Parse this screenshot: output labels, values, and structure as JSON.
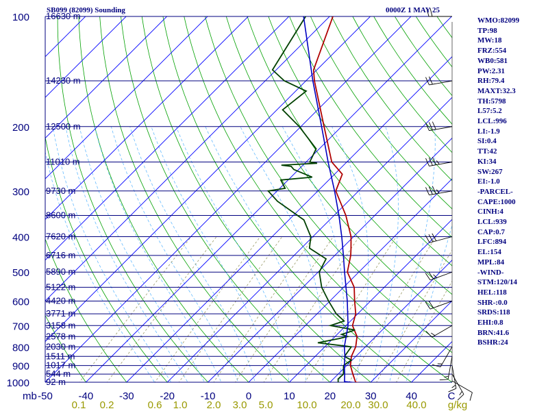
{
  "header": {
    "station": "SB099 (82099) Sounding",
    "time": "0000Z  1 MAY 25"
  },
  "stats": [
    "WMO:82099",
    "TP:98",
    "MW:18",
    "FRZ:554",
    "WB0:581",
    "PW:2.31",
    "RH:79.4",
    "MAXT:32.3",
    "TH:5798",
    "L57:5.2",
    "LCL:996",
    "LI:-1.9",
    "SI:0.4",
    "TT:42",
    "KI:34",
    "SW:267",
    "EI:-1.0",
    "-PARCEL-",
    "CAPE:1000",
    "CINH:4",
    "LCL:939",
    "CAP:0.7",
    "LFC:894",
    "EL:154",
    "MPL:84",
    "-WIND-",
    "STM:120/14",
    "HEL:118",
    "SHR-:0.0",
    "SRDS:118",
    "EHI:0.8",
    "BRN:41.6",
    "BSHR:24"
  ],
  "colors": {
    "isobar": "#00007f",
    "isotherm": "#0000ff",
    "dry_adiabat": "#00a000",
    "moist_adiabat": "#66bbff",
    "mixing_ratio": "#999966",
    "temperature": "#b00000",
    "dewpoint": "#004000",
    "parcel": "#0000c0",
    "text": "#00007f",
    "mr_labels": "#999900"
  },
  "chart_data": {
    "type": "line",
    "title": "SB099 (82099) Sounding",
    "xlabel": "°C",
    "ylabel": "mb",
    "xlim": [
      -50,
      50
    ],
    "ylim": [
      1000,
      100
    ],
    "y_scale": "log",
    "pressure_ticks": [
      100,
      200,
      300,
      400,
      500,
      600,
      700,
      800,
      900,
      1000
    ],
    "pressure_axis_label": "mb",
    "temp_ticks": [
      -50,
      -40,
      -30,
      -20,
      -10,
      0,
      10,
      20,
      30,
      40
    ],
    "temp_tick_labels": [
      "-50",
      "-40",
      "-30",
      "-20",
      "-10",
      "0",
      "10",
      "20",
      "30",
      "40"
    ],
    "corner_label": "C",
    "mixing_ratio_labels": [
      "0.1",
      "0.2",
      "0.6",
      "1.0",
      "2.0",
      "3.0",
      "5.0",
      "10.0",
      "20.0",
      "30.0",
      "40.0"
    ],
    "mixing_ratio_unit": "g/kg",
    "heights": [
      {
        "p": 100,
        "label": "16630 m"
      },
      {
        "p": 150,
        "label": "14230 m"
      },
      {
        "p": 200,
        "label": "12500 m"
      },
      {
        "p": 250,
        "label": "11010 m"
      },
      {
        "p": 300,
        "label": "9730 m"
      },
      {
        "p": 350,
        "label": "8600 m"
      },
      {
        "p": 400,
        "label": "7620 m"
      },
      {
        "p": 450,
        "label": "6716 m"
      },
      {
        "p": 500,
        "label": "5890 m"
      },
      {
        "p": 550,
        "label": "5122 m"
      },
      {
        "p": 600,
        "label": "4420 m"
      },
      {
        "p": 650,
        "label": "3771 m"
      },
      {
        "p": 700,
        "label": "3158 m"
      },
      {
        "p": 750,
        "label": "2578 m"
      },
      {
        "p": 800,
        "label": "2030 m"
      },
      {
        "p": 850,
        "label": "1511 m"
      },
      {
        "p": 900,
        "label": "1017 m"
      },
      {
        "p": 950,
        "label": "544 m"
      },
      {
        "p": 1000,
        "label": "92 m"
      }
    ],
    "series": [
      {
        "key": "temperature",
        "points": [
          [
            1008,
            28.6
          ],
          [
            1000,
            26.3
          ],
          [
            950,
            23.6
          ],
          [
            900,
            20.9
          ],
          [
            850,
            18.9
          ],
          [
            800,
            17.6
          ],
          [
            750,
            15.4
          ],
          [
            700,
            11.6
          ],
          [
            650,
            9.5
          ],
          [
            600,
            6.1
          ],
          [
            550,
            2.6
          ],
          [
            500,
            -2.8
          ],
          [
            450,
            -6.1
          ],
          [
            430,
            -7.8
          ],
          [
            400,
            -10.6
          ],
          [
            350,
            -17.1
          ],
          [
            300,
            -25.6
          ],
          [
            270,
            -28.1
          ],
          [
            250,
            -33.7
          ],
          [
            200,
            -44.3
          ],
          [
            150,
            -57.9
          ],
          [
            140,
            -60.8
          ],
          [
            100,
            -69.2
          ]
        ]
      },
      {
        "key": "dewpoint",
        "points": [
          [
            1008,
            22.4
          ],
          [
            1000,
            22.0
          ],
          [
            980,
            21.2
          ],
          [
            950,
            21.3
          ],
          [
            900,
            19.2
          ],
          [
            870,
            19.8
          ],
          [
            850,
            17.2
          ],
          [
            800,
            16.5
          ],
          [
            780,
            7.3
          ],
          [
            760,
            11.4
          ],
          [
            750,
            13.1
          ],
          [
            740,
            11.1
          ],
          [
            720,
            13.3
          ],
          [
            700,
            6.2
          ],
          [
            680,
            8.4
          ],
          [
            650,
            4.7
          ],
          [
            600,
            -0.3
          ],
          [
            550,
            -5.4
          ],
          [
            500,
            -9.7
          ],
          [
            460,
            -11.3
          ],
          [
            430,
            -18.0
          ],
          [
            400,
            -20.5
          ],
          [
            360,
            -26.3
          ],
          [
            320,
            -37.4
          ],
          [
            300,
            -42.2
          ],
          [
            295,
            -38.7
          ],
          [
            280,
            -41.8
          ],
          [
            275,
            -34.8
          ],
          [
            262,
            -41.2
          ],
          [
            257,
            -42.6
          ],
          [
            255,
            -45.3
          ],
          [
            252,
            -37.0
          ],
          [
            250,
            -39.1
          ],
          [
            230,
            -40.8
          ],
          [
            200,
            -50.4
          ],
          [
            180,
            -58.6
          ],
          [
            160,
            -57.4
          ],
          [
            150,
            -65.3
          ],
          [
            140,
            -70.9
          ],
          [
            100,
            -75.9
          ]
        ]
      },
      {
        "key": "parcel",
        "points": [
          [
            1008,
            28.6
          ],
          [
            996,
            23.4
          ],
          [
            950,
            21.6
          ],
          [
            900,
            19.4
          ],
          [
            850,
            17.3
          ],
          [
            800,
            14.8
          ],
          [
            700,
            10.5
          ],
          [
            600,
            4.3
          ],
          [
            500,
            -3.5
          ],
          [
            450,
            -7.9
          ],
          [
            400,
            -12.9
          ],
          [
            350,
            -18.8
          ],
          [
            300,
            -25.9
          ],
          [
            250,
            -34.6
          ],
          [
            200,
            -44.9
          ],
          [
            150,
            -58.3
          ],
          [
            100,
            -76.4
          ]
        ]
      }
    ],
    "wind_barbs": [
      {
        "p": 1008,
        "dir": 120,
        "spd": 10
      },
      {
        "p": 950,
        "dir": 150,
        "spd": 15
      },
      {
        "p": 900,
        "dir": 170,
        "spd": 15
      },
      {
        "p": 850,
        "dir": 190,
        "spd": 15
      },
      {
        "p": 800,
        "dir": 210,
        "spd": 15
      },
      {
        "p": 700,
        "dir": 240,
        "spd": 15
      },
      {
        "p": 600,
        "dir": 250,
        "spd": 20
      },
      {
        "p": 500,
        "dir": 250,
        "spd": 25
      },
      {
        "p": 400,
        "dir": 255,
        "spd": 30
      },
      {
        "p": 300,
        "dir": 260,
        "spd": 35
      },
      {
        "p": 250,
        "dir": 260,
        "spd": 35
      },
      {
        "p": 200,
        "dir": 260,
        "spd": 30
      },
      {
        "p": 150,
        "dir": 260,
        "spd": 20
      },
      {
        "p": 100,
        "dir": 270,
        "spd": 20
      }
    ]
  }
}
